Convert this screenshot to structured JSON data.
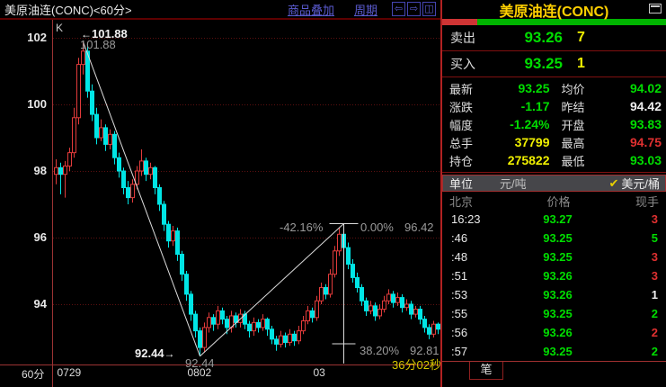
{
  "colors": {
    "up": "#e23b3b",
    "down": "#00e5e5",
    "grid": "#5d1010",
    "axis": "#9c3333",
    "trend": "#dcdcdc",
    "green": "#00dd00",
    "red": "#e03030",
    "yellow": "#f0f000",
    "white": "#eeeeee"
  },
  "icons": {
    "nav_left": "⇦",
    "nav_right": "⇨",
    "nav_split": "◫",
    "arrow_left": "←",
    "arrow_right": "→",
    "check": "✔"
  },
  "toolbar": {
    "chart_title": "美原油连(CONC)<60分>",
    "overlay_link": "商品叠加",
    "period_link": "周期"
  },
  "chart_data": {
    "type": "candlestick",
    "title": "美原油连(CONC) 60分钟K线",
    "indicator_label": "K",
    "period_label": "60分",
    "y_ticks": [
      102,
      100,
      98,
      96,
      94
    ],
    "y_range": [
      92.2,
      102.4
    ],
    "x_axis_labels": [
      {
        "label": "0729",
        "index": 1
      },
      {
        "label": "0802",
        "index": 30
      },
      {
        "label": "03",
        "index": 58
      }
    ],
    "candles": [
      [
        97.9,
        98.35,
        97.6,
        98.1
      ],
      [
        98.1,
        98.25,
        97.3,
        97.9
      ],
      [
        97.9,
        98.3,
        97.2,
        98.15
      ],
      [
        98.15,
        98.7,
        98.0,
        98.55
      ],
      [
        98.55,
        99.9,
        98.4,
        99.6
      ],
      [
        99.6,
        101.4,
        99.4,
        101.2
      ],
      [
        101.2,
        101.88,
        100.9,
        101.6
      ],
      [
        101.6,
        101.8,
        100.2,
        100.4
      ],
      [
        100.4,
        100.6,
        99.5,
        99.7
      ],
      [
        99.7,
        99.9,
        98.8,
        99.0
      ],
      [
        99.0,
        99.55,
        98.9,
        99.3
      ],
      [
        99.3,
        99.4,
        98.6,
        98.8
      ],
      [
        98.8,
        99.25,
        98.65,
        99.1
      ],
      [
        99.1,
        99.2,
        98.2,
        98.4
      ],
      [
        98.4,
        98.55,
        97.8,
        98.0
      ],
      [
        98.0,
        98.1,
        97.3,
        97.5
      ],
      [
        97.5,
        97.7,
        97.0,
        97.2
      ],
      [
        97.2,
        97.75,
        97.05,
        97.6
      ],
      [
        97.6,
        98.15,
        97.45,
        98.0
      ],
      [
        98.0,
        98.65,
        97.85,
        98.3
      ],
      [
        98.3,
        98.4,
        97.7,
        97.9
      ],
      [
        97.9,
        98.25,
        97.75,
        98.1
      ],
      [
        98.1,
        98.15,
        97.3,
        97.5
      ],
      [
        97.5,
        97.6,
        96.8,
        97.0
      ],
      [
        97.0,
        97.1,
        96.2,
        96.4
      ],
      [
        96.4,
        96.5,
        95.7,
        95.9
      ],
      [
        95.9,
        96.35,
        95.75,
        96.2
      ],
      [
        96.2,
        96.3,
        95.3,
        95.5
      ],
      [
        95.5,
        95.6,
        94.7,
        94.9
      ],
      [
        94.9,
        95.0,
        94.1,
        94.3
      ],
      [
        94.3,
        94.4,
        93.5,
        93.7
      ],
      [
        93.7,
        93.8,
        93.0,
        93.2
      ],
      [
        93.2,
        93.3,
        92.44,
        92.7
      ],
      [
        92.7,
        93.45,
        92.55,
        93.3
      ],
      [
        93.3,
        93.75,
        93.15,
        93.6
      ],
      [
        93.6,
        93.7,
        93.2,
        93.4
      ],
      [
        93.4,
        93.95,
        93.25,
        93.8
      ],
      [
        93.8,
        93.9,
        93.4,
        93.55
      ],
      [
        93.55,
        93.65,
        93.1,
        93.3
      ],
      [
        93.3,
        93.8,
        93.15,
        93.65
      ],
      [
        93.65,
        93.75,
        93.3,
        93.45
      ],
      [
        93.45,
        93.85,
        93.3,
        93.7
      ],
      [
        93.7,
        93.8,
        93.25,
        93.4
      ],
      [
        93.4,
        93.5,
        93.0,
        93.2
      ],
      [
        93.2,
        93.6,
        93.05,
        93.45
      ],
      [
        93.45,
        93.55,
        93.15,
        93.3
      ],
      [
        93.3,
        93.7,
        93.2,
        93.55
      ],
      [
        93.55,
        93.6,
        93.05,
        93.25
      ],
      [
        93.25,
        93.35,
        92.8,
        92.95
      ],
      [
        92.95,
        93.05,
        92.6,
        92.8
      ],
      [
        92.8,
        93.2,
        92.7,
        93.05
      ],
      [
        93.05,
        93.15,
        92.7,
        92.85
      ],
      [
        92.85,
        93.25,
        92.75,
        93.1
      ],
      [
        93.1,
        93.2,
        92.75,
        92.9
      ],
      [
        92.9,
        93.35,
        92.8,
        93.2
      ],
      [
        93.2,
        93.65,
        93.1,
        93.5
      ],
      [
        93.5,
        93.95,
        93.4,
        93.8
      ],
      [
        93.8,
        93.9,
        93.45,
        93.6
      ],
      [
        93.6,
        94.25,
        93.5,
        94.1
      ],
      [
        94.1,
        94.65,
        94.0,
        94.5
      ],
      [
        94.5,
        94.6,
        94.15,
        94.3
      ],
      [
        94.3,
        95.05,
        94.2,
        94.9
      ],
      [
        94.9,
        95.75,
        94.8,
        95.6
      ],
      [
        95.6,
        96.3,
        95.45,
        96.1
      ],
      [
        96.1,
        96.42,
        95.55,
        95.7
      ],
      [
        95.7,
        95.85,
        95.05,
        95.2
      ],
      [
        95.2,
        95.35,
        94.65,
        94.8
      ],
      [
        94.8,
        94.95,
        94.35,
        94.5
      ],
      [
        94.5,
        94.6,
        93.95,
        94.1
      ],
      [
        94.1,
        94.2,
        93.65,
        93.8
      ],
      [
        93.8,
        94.1,
        93.7,
        93.95
      ],
      [
        93.95,
        94.05,
        93.5,
        93.65
      ],
      [
        93.65,
        94.0,
        93.55,
        93.85
      ],
      [
        93.85,
        94.25,
        93.75,
        94.1
      ],
      [
        94.1,
        94.45,
        94.0,
        94.3
      ],
      [
        94.3,
        94.4,
        93.9,
        94.05
      ],
      [
        94.05,
        94.35,
        93.95,
        94.2
      ],
      [
        94.2,
        94.3,
        93.75,
        93.9
      ],
      [
        93.9,
        94.15,
        93.8,
        94.0
      ],
      [
        94.0,
        94.1,
        93.55,
        93.7
      ],
      [
        93.7,
        93.95,
        93.6,
        93.85
      ],
      [
        93.85,
        93.95,
        93.4,
        93.55
      ],
      [
        93.55,
        93.65,
        93.15,
        93.3
      ],
      [
        93.3,
        93.4,
        92.95,
        93.1
      ],
      [
        93.1,
        93.5,
        93.0,
        93.4
      ],
      [
        93.4,
        93.45,
        93.1,
        93.25
      ]
    ],
    "drawings": {
      "lines": [
        [
          6,
          101.88,
          32,
          92.44
        ],
        [
          32,
          92.44,
          64,
          96.42
        ]
      ],
      "vline": {
        "index": 64,
        "from": 96.42,
        "to": 92.22
      },
      "hticks": [
        {
          "index": 64,
          "price": 96.42,
          "half": 16
        },
        {
          "index": 64,
          "price": 92.81,
          "half": 13
        }
      ]
    },
    "annotations": {
      "high_bold": "101.88",
      "high_gray": "101.88",
      "low_bold": "92.44",
      "low_gray": "92.44",
      "pct_down": "-42.16%",
      "pct_zero": "0.00%",
      "peak_price": "96.42",
      "pct_382": "38.20%",
      "price_382": "92.81",
      "countdown": "36分02秒"
    }
  },
  "quote_panel": {
    "title": "美原油连(CONC)",
    "strength_red_pct": 15.5,
    "sell": {
      "label": "卖出",
      "price": "93.26",
      "qty": "7"
    },
    "buy": {
      "label": "买入",
      "price": "93.25",
      "qty": "1"
    },
    "stats_left": [
      {
        "label": "最新",
        "value": "93.25",
        "color": "green"
      },
      {
        "label": "涨跌",
        "value": "-1.17",
        "color": "green"
      },
      {
        "label": "幅度",
        "value": "-1.24%",
        "color": "green"
      },
      {
        "label": "总手",
        "value": "37799",
        "color": "yellow"
      },
      {
        "label": "持仓",
        "value": "275822",
        "color": "yellow"
      }
    ],
    "stats_right": [
      {
        "label": "均价",
        "value": "94.02",
        "color": "green"
      },
      {
        "label": "昨结",
        "value": "94.42",
        "color": "white"
      },
      {
        "label": "开盘",
        "value": "93.83",
        "color": "green"
      },
      {
        "label": "最高",
        "value": "94.75",
        "color": "red"
      },
      {
        "label": "最低",
        "value": "93.03",
        "color": "green"
      }
    ],
    "unit_row": {
      "label": "单位",
      "option1": "元/吨",
      "option2": "美元/桶"
    },
    "tick_header": {
      "time": "北京",
      "price": "价格",
      "qty": "现手"
    },
    "ticks": [
      {
        "time": "16:23",
        "price": "93.27",
        "qty": "3",
        "qty_color": "red"
      },
      {
        "time": ":46",
        "price": "93.25",
        "qty": "5",
        "qty_color": "green"
      },
      {
        "time": ":48",
        "price": "93.25",
        "qty": "3",
        "qty_color": "red"
      },
      {
        "time": ":51",
        "price": "93.26",
        "qty": "3",
        "qty_color": "red"
      },
      {
        "time": ":53",
        "price": "93.26",
        "qty": "1",
        "qty_color": "white"
      },
      {
        "time": ":55",
        "price": "93.25",
        "qty": "2",
        "qty_color": "green"
      },
      {
        "time": ":56",
        "price": "93.26",
        "qty": "2",
        "qty_color": "red"
      },
      {
        "time": ":57",
        "price": "93.25",
        "qty": "2",
        "qty_color": "green"
      }
    ],
    "tab": "笔"
  }
}
